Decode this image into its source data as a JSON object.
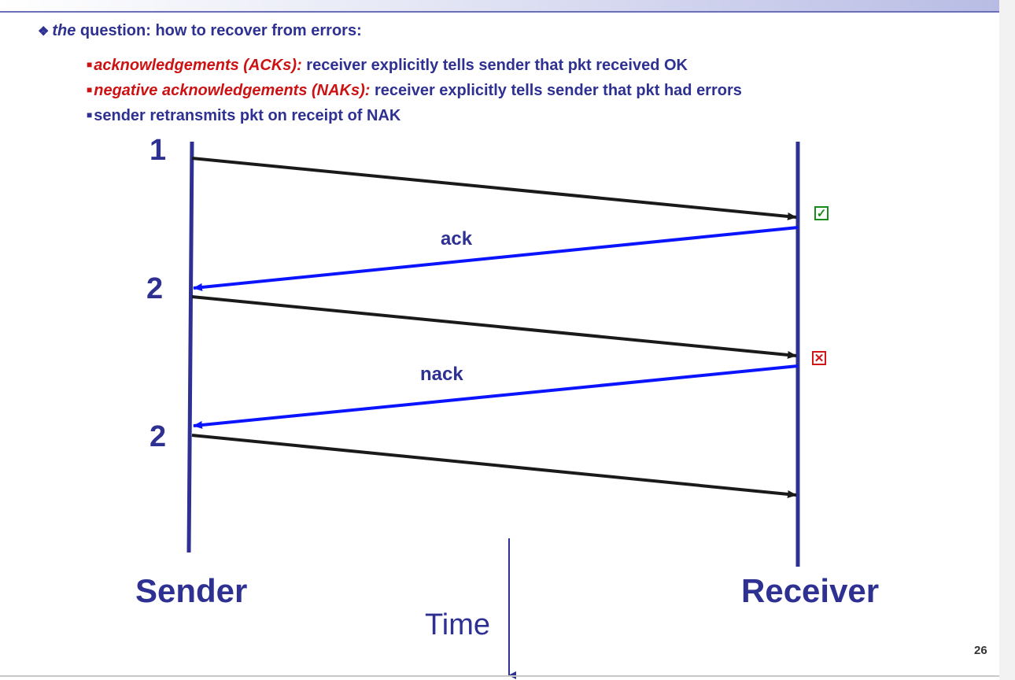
{
  "question": {
    "prefix": "the",
    "text": " question: how to recover from errors:"
  },
  "bullets": [
    {
      "term": "acknowledgements (ACKs):",
      "text": " receiver explicitly tells sender that pkt received OK"
    },
    {
      "term": "negative acknowledgements (NAKs):",
      "text": " receiver explicitly tells sender that pkt had errors"
    },
    {
      "term": "",
      "text": "sender retransmits pkt on receipt of NAK"
    }
  ],
  "diagram": {
    "seq_labels": [
      "1",
      "2",
      "2"
    ],
    "message_labels": {
      "ack": "ack",
      "nack": "nack"
    },
    "sender_label": "Sender",
    "receiver_label": "Receiver",
    "time_label": "Time",
    "status": {
      "ok_symbol": "✓",
      "error_symbol": "✕"
    },
    "colors": {
      "data_arrow": "#1a1a1a",
      "reply_arrow": "#0a14ff",
      "timeline": "#2e3192"
    }
  },
  "page_number": "26"
}
